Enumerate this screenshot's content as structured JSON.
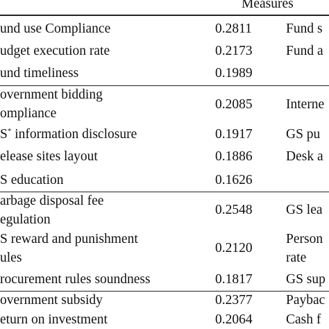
{
  "header": {
    "measures": "Measures"
  },
  "rows": [
    {
      "indicator": "und use Compliance",
      "weight": "0.2811",
      "measure": "Fund s"
    },
    {
      "indicator": "udget execution rate",
      "weight": "0.2173",
      "measure": "Fund a"
    },
    {
      "indicator": "und timeliness",
      "weight": "0.1989",
      "measure": ""
    },
    {
      "indicator_line1": "overnment bidding",
      "indicator_line2": "ompliance",
      "weight": "0.2085",
      "measure": "Interne"
    },
    {
      "indicator_pre": "S",
      "indicator_sup": "*",
      "indicator_post": " information disclosure",
      "weight": "0.1917",
      "measure": "GS pu"
    },
    {
      "indicator": "elease sites layout",
      "weight": "0.1886",
      "measure": "Desk a"
    },
    {
      "indicator": "S education",
      "weight": "0.1626",
      "measure": ""
    },
    {
      "indicator_line1": "arbage disposal fee",
      "indicator_line2": "egulation",
      "weight": "0.2548",
      "measure": "GS lea"
    },
    {
      "indicator_line1": "S reward and punishment",
      "indicator_line2": "ules",
      "weight": "0.2120",
      "measure_line1": "Person",
      "measure_line2": "rate"
    },
    {
      "indicator": "rocurement rules soundness",
      "weight": "0.1817",
      "measure": "GS sup"
    },
    {
      "indicator": "overnment subsidy",
      "weight": "0.2377",
      "measure": "Paybac"
    },
    {
      "indicator": "eturn on investment",
      "weight": "0.2064",
      "measure": "Cash f"
    }
  ]
}
